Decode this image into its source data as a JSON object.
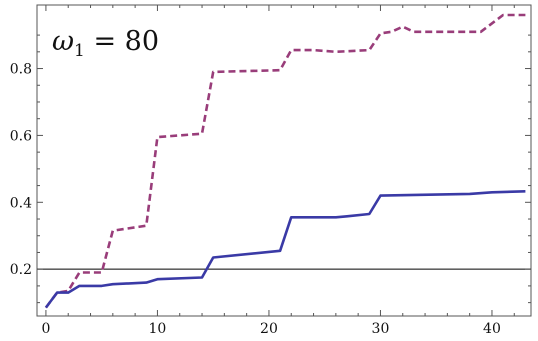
{
  "chart_data": {
    "type": "line",
    "annotation": {
      "symbol": "ω",
      "subscript": "1",
      "rest": " = 80"
    },
    "xlim": [
      -0.8,
      43.5
    ],
    "ylim": [
      0.06,
      0.99
    ],
    "xticks": [
      0,
      10,
      20,
      30,
      40
    ],
    "yticks": [
      0.2,
      0.4,
      0.6,
      0.8
    ],
    "ytick_labels": [
      "0.2",
      "0.4",
      "0.6",
      "0.8"
    ],
    "reference_line": {
      "y": 0.2,
      "color": "#000000"
    },
    "grid": false,
    "legend": "none",
    "series": [
      {
        "color": "#993d7a",
        "style": "dashed",
        "points": [
          [
            0,
            0.085
          ],
          [
            1,
            0.13
          ],
          [
            2,
            0.135
          ],
          [
            3,
            0.19
          ],
          [
            5,
            0.19
          ],
          [
            6,
            0.315
          ],
          [
            9,
            0.33
          ],
          [
            10,
            0.595
          ],
          [
            14,
            0.605
          ],
          [
            15,
            0.79
          ],
          [
            21,
            0.795
          ],
          [
            22,
            0.855
          ],
          [
            24,
            0.855
          ],
          [
            26,
            0.85
          ],
          [
            29,
            0.855
          ],
          [
            30,
            0.905
          ],
          [
            31,
            0.91
          ],
          [
            32,
            0.925
          ],
          [
            33,
            0.91
          ],
          [
            39,
            0.91
          ],
          [
            41,
            0.96
          ],
          [
            43,
            0.96
          ]
        ]
      },
      {
        "color": "#3a3aa6",
        "style": "solid",
        "points": [
          [
            0,
            0.085
          ],
          [
            1,
            0.13
          ],
          [
            2,
            0.13
          ],
          [
            3,
            0.15
          ],
          [
            5,
            0.15
          ],
          [
            6,
            0.155
          ],
          [
            9,
            0.16
          ],
          [
            10,
            0.17
          ],
          [
            14,
            0.175
          ],
          [
            15,
            0.235
          ],
          [
            21,
            0.255
          ],
          [
            22,
            0.355
          ],
          [
            26,
            0.355
          ],
          [
            27,
            0.358
          ],
          [
            29,
            0.365
          ],
          [
            30,
            0.42
          ],
          [
            38,
            0.425
          ],
          [
            40,
            0.43
          ],
          [
            43,
            0.433
          ]
        ]
      }
    ]
  }
}
